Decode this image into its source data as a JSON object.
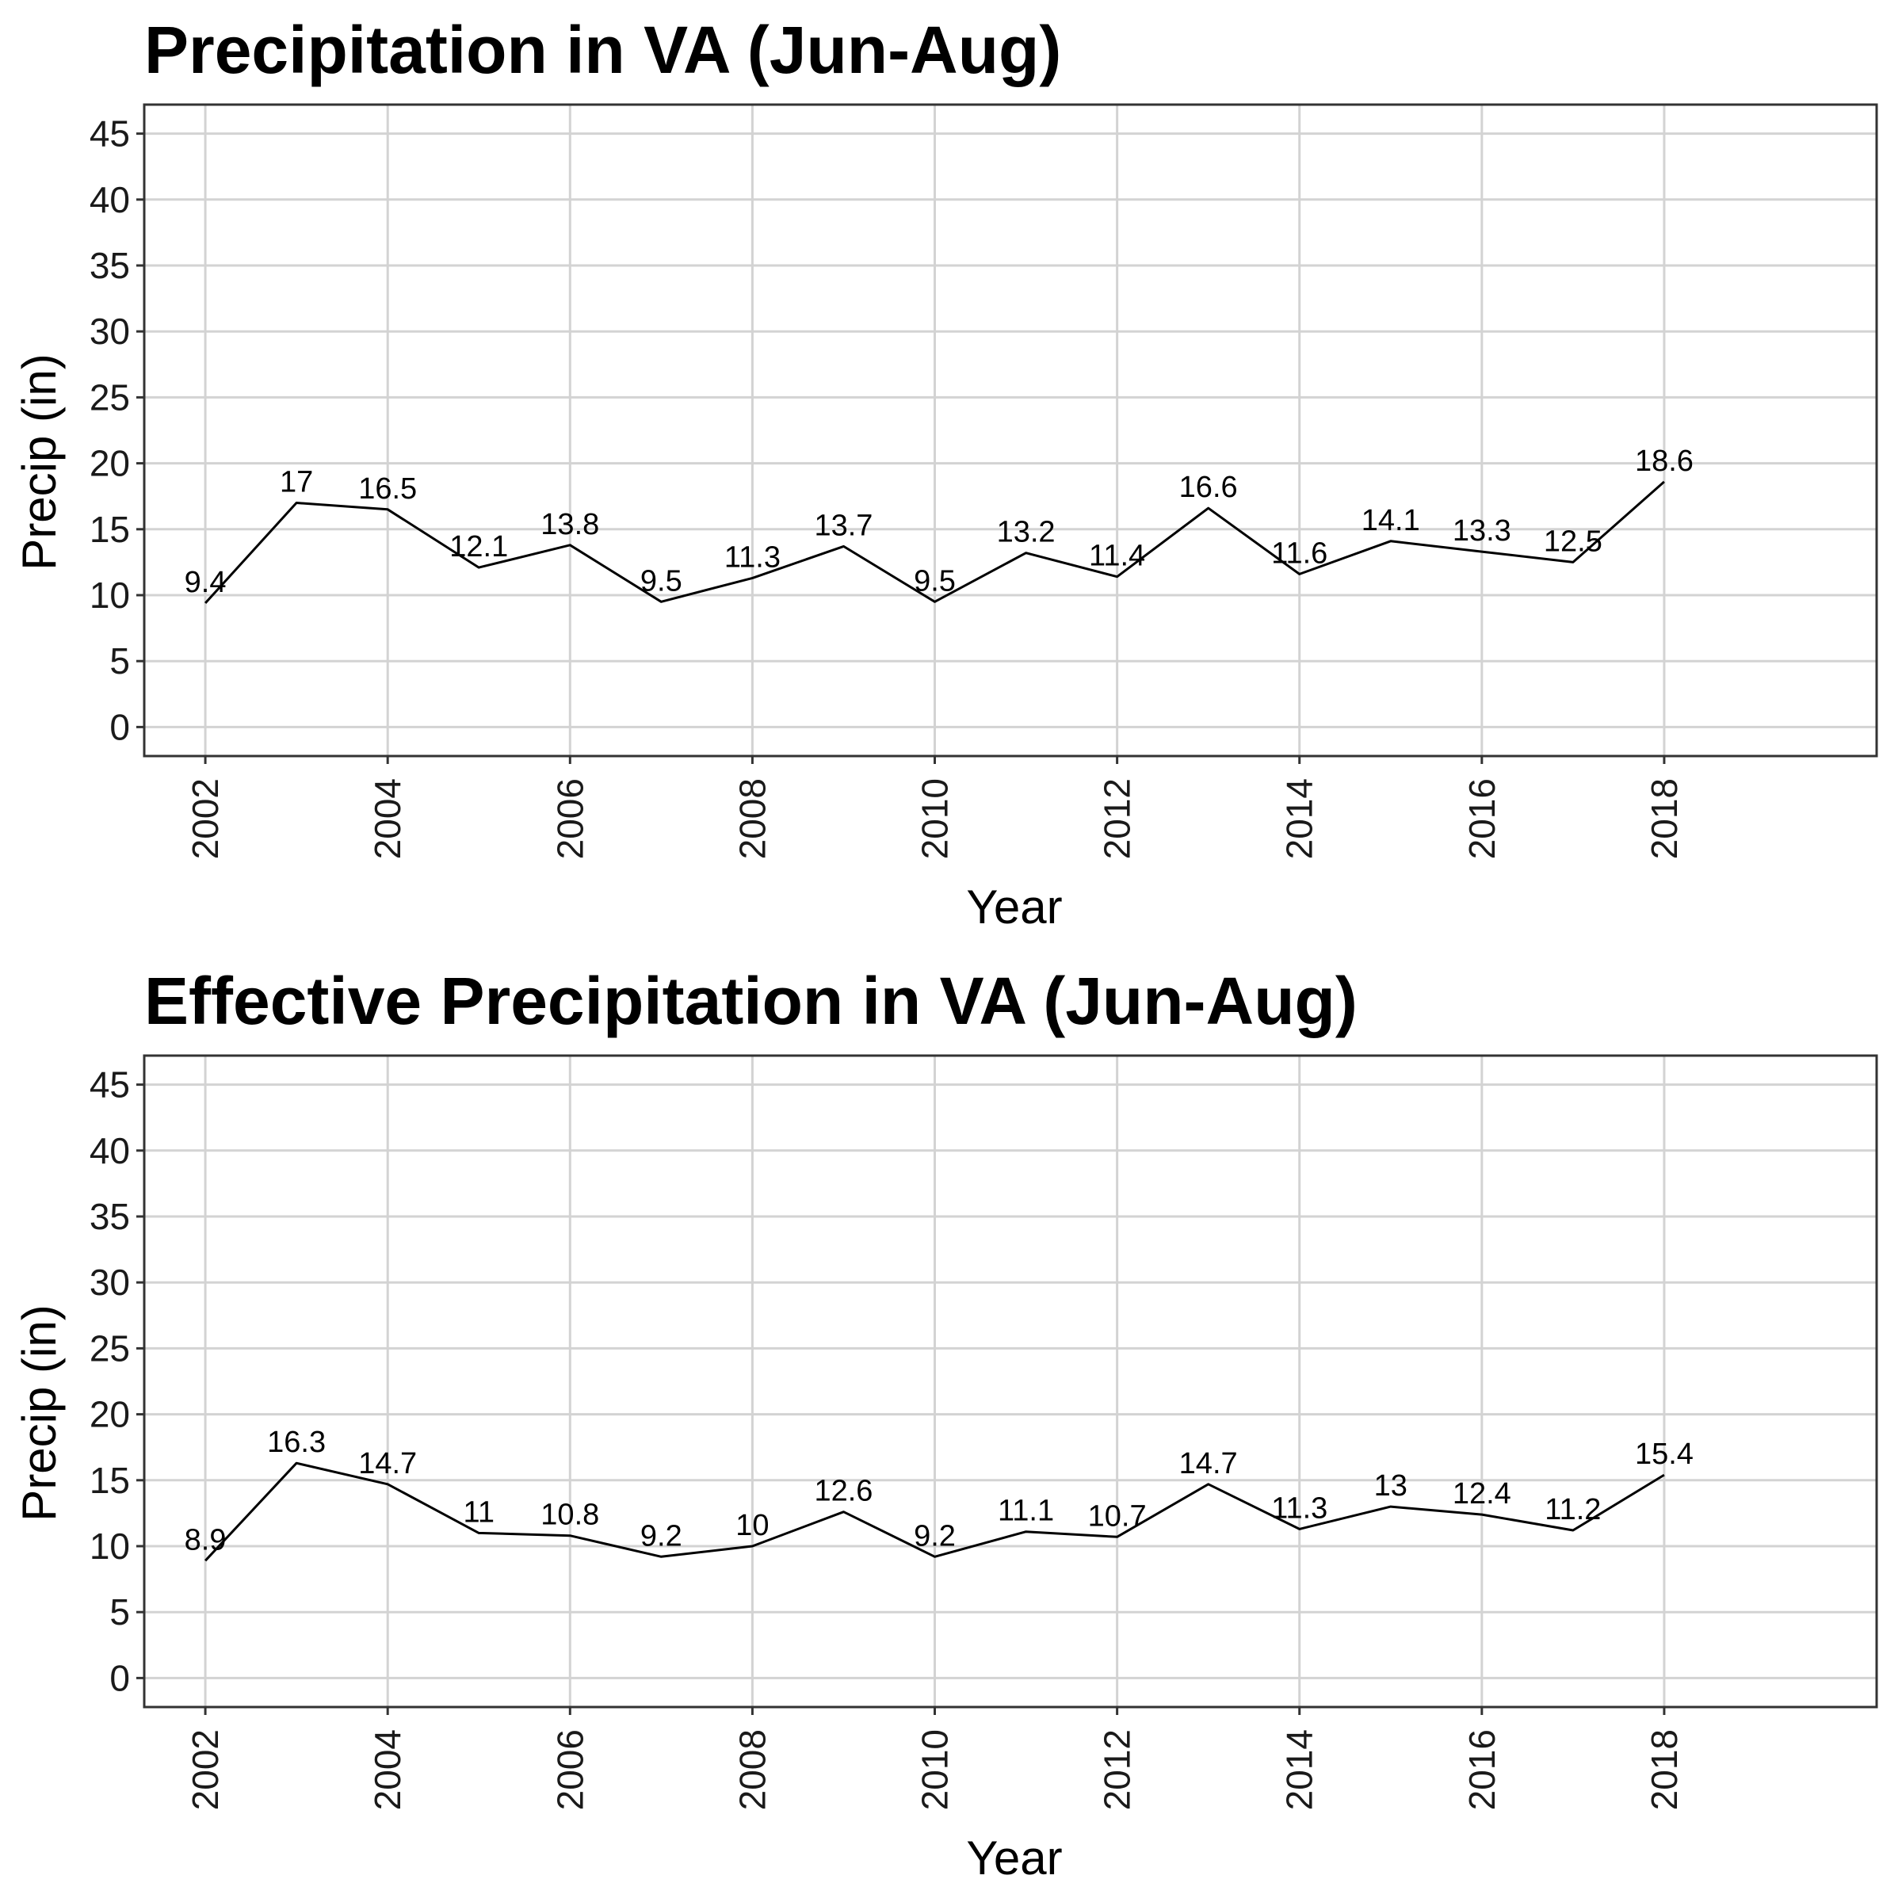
{
  "chart_data": [
    {
      "type": "line",
      "title": "Precipitation in VA (Jun-Aug)",
      "xlabel": "Year",
      "ylabel": "Precip (in)",
      "x": [
        2002,
        2003,
        2004,
        2005,
        2006,
        2007,
        2008,
        2009,
        2010,
        2011,
        2012,
        2013,
        2014,
        2015,
        2016,
        2017,
        2018
      ],
      "values": [
        9.4,
        17,
        16.5,
        12.1,
        13.8,
        9.5,
        11.3,
        13.7,
        9.5,
        13.2,
        11.4,
        16.6,
        11.6,
        14.1,
        13.3,
        12.5,
        18.6
      ],
      "labels": [
        "9.4",
        "17",
        "16.5",
        "12.1",
        "13.8",
        "9.5",
        "11.3",
        "13.7",
        "9.5",
        "13.2",
        "11.4",
        "16.6",
        "11.6",
        "14.1",
        "13.3",
        "12.5",
        "18.6"
      ],
      "xticks": [
        "2002",
        "2004",
        "2006",
        "2008",
        "2010",
        "2012",
        "2014",
        "2016",
        "2018"
      ],
      "xtick_values": [
        2002,
        2004,
        2006,
        2008,
        2010,
        2012,
        2014,
        2016,
        2018
      ],
      "yticks": [
        "0",
        "5",
        "10",
        "15",
        "20",
        "25",
        "30",
        "35",
        "40",
        "45"
      ],
      "ytick_values": [
        0,
        5,
        10,
        15,
        20,
        25,
        30,
        35,
        40,
        45
      ],
      "xlim": [
        2001.33,
        2020.33
      ],
      "ylim": [
        -2.2,
        47.2
      ],
      "grid": true,
      "legend": "none",
      "line_color": "#000000"
    },
    {
      "type": "line",
      "title": "Effective Precipitation in VA (Jun-Aug)",
      "xlabel": "Year",
      "ylabel": "Precip (in)",
      "x": [
        2002,
        2003,
        2004,
        2005,
        2006,
        2007,
        2008,
        2009,
        2010,
        2011,
        2012,
        2013,
        2014,
        2015,
        2016,
        2017,
        2018
      ],
      "values": [
        8.9,
        16.3,
        14.7,
        11,
        10.8,
        9.2,
        10,
        12.6,
        9.2,
        11.1,
        10.7,
        14.7,
        11.3,
        13,
        12.4,
        11.2,
        15.4
      ],
      "labels": [
        "8.9",
        "16.3",
        "14.7",
        "11",
        "10.8",
        "9.2",
        "10",
        "12.6",
        "9.2",
        "11.1",
        "10.7",
        "14.7",
        "11.3",
        "13",
        "12.4",
        "11.2",
        "15.4"
      ],
      "xticks": [
        "2002",
        "2004",
        "2006",
        "2008",
        "2010",
        "2012",
        "2014",
        "2016",
        "2018"
      ],
      "xtick_values": [
        2002,
        2004,
        2006,
        2008,
        2010,
        2012,
        2014,
        2016,
        2018
      ],
      "yticks": [
        "0",
        "5",
        "10",
        "15",
        "20",
        "25",
        "30",
        "35",
        "40",
        "45"
      ],
      "ytick_values": [
        0,
        5,
        10,
        15,
        20,
        25,
        30,
        35,
        40,
        45
      ],
      "xlim": [
        2001.33,
        2020.33
      ],
      "ylim": [
        -2.2,
        47.2
      ],
      "grid": true,
      "legend": "none",
      "line_color": "#000000"
    }
  ]
}
